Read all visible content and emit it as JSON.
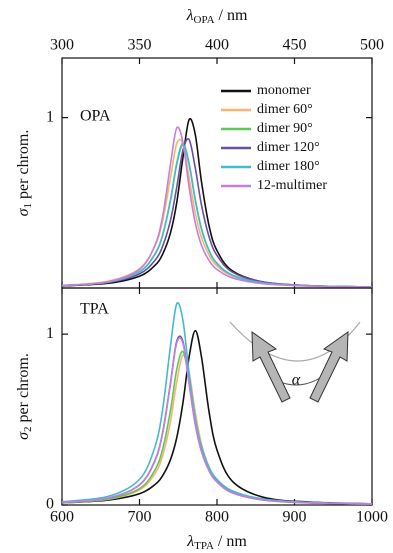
{
  "chart_data": [
    {
      "type": "line",
      "panel_label": "OPA",
      "xlabel": {
        "symbol": "λ",
        "subscript": "OPA",
        "unit": " / nm"
      },
      "ylabel": {
        "symbol": "σ",
        "subscript": "1",
        "unit": " per chrom."
      },
      "xlim": [
        300,
        500
      ],
      "xticks": [
        300,
        350,
        400,
        450,
        500
      ],
      "ylim": [
        0,
        1.35
      ],
      "yticks": [
        1
      ],
      "x": [
        300,
        330,
        350,
        360,
        365,
        370,
        374,
        378,
        382,
        386,
        390,
        395,
        400,
        410,
        430,
        460,
        500
      ],
      "series": [
        {
          "name": "monomer",
          "color": "#111111",
          "values": [
            0.012,
            0.028,
            0.069,
            0.133,
            0.2,
            0.324,
            0.5,
            0.764,
            0.988,
            0.9,
            0.623,
            0.36,
            0.219,
            0.1,
            0.035,
            0.013,
            0.006
          ]
        },
        {
          "name": "dimer 60°",
          "color": "#f5b56e",
          "values": [
            0.015,
            0.04,
            0.114,
            0.247,
            0.398,
            0.647,
            0.847,
            0.847,
            0.647,
            0.44,
            0.297,
            0.191,
            0.13,
            0.07,
            0.029,
            0.012,
            0.005
          ]
        },
        {
          "name": "dimer 90°",
          "color": "#5cc85a",
          "values": [
            0.014,
            0.035,
            0.096,
            0.201,
            0.316,
            0.519,
            0.733,
            0.85,
            0.733,
            0.519,
            0.349,
            0.218,
            0.145,
            0.076,
            0.031,
            0.013,
            0.006
          ]
        },
        {
          "name": "dimer 120°",
          "color": "#6a4f9e",
          "values": [
            0.013,
            0.033,
            0.083,
            0.163,
            0.247,
            0.398,
            0.59,
            0.807,
            0.871,
            0.704,
            0.486,
            0.297,
            0.191,
            0.093,
            0.035,
            0.014,
            0.006
          ]
        },
        {
          "name": "dimer 180°",
          "color": "#45b9d2",
          "values": [
            0.014,
            0.035,
            0.095,
            0.198,
            0.312,
            0.512,
            0.724,
            0.84,
            0.724,
            0.512,
            0.344,
            0.216,
            0.144,
            0.075,
            0.03,
            0.013,
            0.006
          ]
        },
        {
          "name": "12-multimer",
          "color": "#c57fdb",
          "values": [
            0.013,
            0.037,
            0.109,
            0.251,
            0.425,
            0.726,
            0.939,
            0.855,
            0.592,
            0.381,
            0.251,
            0.16,
            0.109,
            0.059,
            0.025,
            0.011,
            0.005
          ]
        }
      ]
    },
    {
      "type": "line",
      "panel_label": "TPA",
      "xlabel": {
        "symbol": "λ",
        "subscript": "TPA",
        "unit": " / nm"
      },
      "ylabel": {
        "symbol": "σ",
        "subscript": "2",
        "unit": " per chrom."
      },
      "inset_label": "α",
      "xlim": [
        600,
        1000
      ],
      "xticks": [
        600,
        700,
        800,
        900,
        1000
      ],
      "ylim": [
        0,
        1.27
      ],
      "yticks": [
        0,
        1
      ],
      "x": [
        600,
        660,
        700,
        720,
        730,
        740,
        748,
        756,
        764,
        772,
        780,
        790,
        800,
        820,
        860,
        920,
        1000
      ],
      "series": [
        {
          "color": "#111111",
          "values": [
            0.012,
            0.029,
            0.066,
            0.12,
            0.173,
            0.266,
            0.393,
            0.597,
            0.866,
            1.02,
            0.866,
            0.538,
            0.322,
            0.138,
            0.045,
            0.017,
            0.007
          ]
        },
        {
          "color": "#f5b56e",
          "values": [
            0.013,
            0.033,
            0.088,
            0.184,
            0.291,
            0.489,
            0.719,
            0.877,
            0.775,
            0.542,
            0.357,
            0.219,
            0.144,
            0.073,
            0.029,
            0.012,
            0.005
          ]
        },
        {
          "color": "#5cc85a",
          "values": [
            0.013,
            0.035,
            0.096,
            0.205,
            0.33,
            0.554,
            0.792,
            0.898,
            0.735,
            0.5,
            0.33,
            0.205,
            0.136,
            0.071,
            0.029,
            0.012,
            0.005
          ]
        },
        {
          "color": "#6a4f9e",
          "values": [
            0.015,
            0.041,
            0.118,
            0.261,
            0.427,
            0.715,
            0.958,
            0.958,
            0.715,
            0.474,
            0.315,
            0.2,
            0.136,
            0.072,
            0.03,
            0.013,
            0.006
          ]
        },
        {
          "color": "#45b9d2",
          "values": [
            0.019,
            0.051,
            0.15,
            0.341,
            0.564,
            0.932,
            1.177,
            1.082,
            0.771,
            0.508,
            0.341,
            0.219,
            0.15,
            0.082,
            0.035,
            0.015,
            0.007
          ]
        },
        {
          "color": "#c57fdb",
          "values": [
            0.015,
            0.041,
            0.117,
            0.258,
            0.423,
            0.708,
            0.948,
            0.948,
            0.708,
            0.469,
            0.312,
            0.198,
            0.135,
            0.071,
            0.03,
            0.013,
            0.006
          ]
        }
      ]
    }
  ]
}
